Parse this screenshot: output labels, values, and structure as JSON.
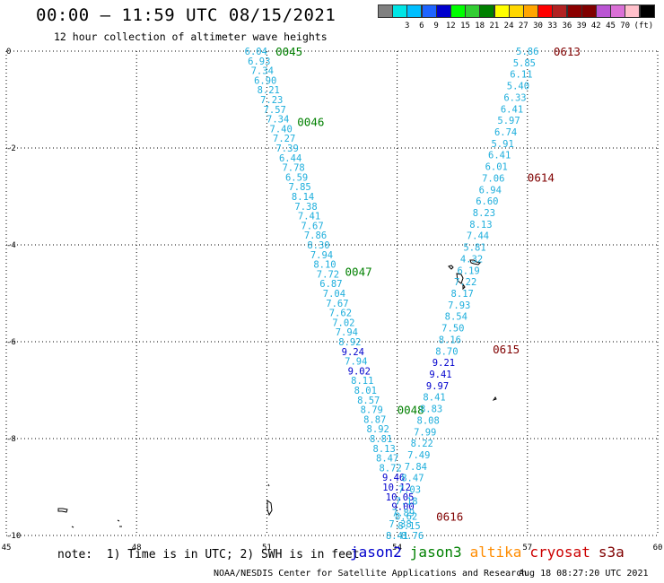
{
  "header": {
    "title": "00:00 – 11:59 UTC 08/15/2021",
    "subtitle": "12 hour collection of altimeter wave heights"
  },
  "colorbar": {
    "unit": "(ft)",
    "colors": [
      "#808080",
      "#00e5e5",
      "#00bfff",
      "#1e64ff",
      "#0000cd",
      "#00ff00",
      "#32cd32",
      "#008000",
      "#ffff00",
      "#ffd700",
      "#ffa500",
      "#ff0000",
      "#b22222",
      "#8b0000",
      "#800000",
      "#ba55d3",
      "#da70d6",
      "#ffc0cb",
      "#000000"
    ],
    "labels": [
      "",
      "3",
      "6",
      "9",
      "12",
      "15",
      "18",
      "21",
      "24",
      "27",
      "30",
      "33",
      "36",
      "39",
      "42",
      "45",
      "70",
      ""
    ]
  },
  "note": "note:  1) Time is in UTC; 2) SWH is in feet",
  "satellites": [
    {
      "name": "jason2",
      "color": "#0000cc"
    },
    {
      "name": "jason3",
      "color": "#008000"
    },
    {
      "name": "altika",
      "color": "#ff8c00"
    },
    {
      "name": "cryosat",
      "color": "#cc0000"
    },
    {
      "name": "s3a",
      "color": "#800000"
    }
  ],
  "footer": {
    "credit": "NOAA/NESDIS Center for Satellite Applications and Research",
    "timestamp": "Aug 18 08:27:20 UTC 2021"
  },
  "chart_data": {
    "type": "scatter",
    "xlabel": "",
    "ylabel": "",
    "xlim": [
      45,
      60
    ],
    "ylim": [
      -10,
      0
    ],
    "x_ticks": [
      "45",
      "48",
      "51",
      "54",
      "57",
      "60"
    ],
    "y_ticks": [
      "0",
      "-2",
      "-4",
      "-6",
      "-8",
      "-10"
    ],
    "grid": true,
    "tracks": [
      {
        "satellite": "jason3",
        "label_color": "#008000",
        "time_labels": [
          {
            "text": "0045",
            "x": 51.2,
            "y": 0
          },
          {
            "text": "0046",
            "x": 51.7,
            "y": -1.45
          },
          {
            "text": "0047",
            "x": 52.8,
            "y": -4.55
          },
          {
            "text": "0048",
            "x": 54.0,
            "y": -7.4
          }
        ],
        "start": [
          50.75,
          0.0
        ],
        "end": [
          54.35,
          -10.0
        ],
        "values": [
          "6.04",
          "6.93",
          "7.34",
          "6.90",
          "8.21",
          "7.23",
          "7.57",
          "7.34",
          "7.40",
          "7.27",
          "7.39",
          "6.44",
          "7.78",
          "6.59",
          "7.85",
          "8.14",
          "7.38",
          "7.41",
          "7.67",
          "7.86",
          "8.30",
          "7.94",
          "8.10",
          "7.72",
          "6.87",
          "7.04",
          "7.67",
          "7.62",
          "7.02",
          "7.94",
          "8.92",
          "9.24",
          "7.94",
          "9.02",
          "8.11",
          "8.01",
          "8.57",
          "8.79",
          "8.87",
          "8.92",
          "8.81",
          "8.13",
          "8.47",
          "8.72",
          "9.46",
          "10.12",
          "10.05",
          "9.00",
          "8.62",
          "8.15",
          "8.76"
        ]
      },
      {
        "satellite": "s3a",
        "label_color": "#800000",
        "time_labels": [
          {
            "text": "0613",
            "x": 57.6,
            "y": 0
          },
          {
            "text": "0614",
            "x": 57.0,
            "y": -2.6
          },
          {
            "text": "0615",
            "x": 56.2,
            "y": -6.15
          },
          {
            "text": "0616",
            "x": 54.9,
            "y": -9.6
          }
        ],
        "start": [
          57.0,
          0.0
        ],
        "end": [
          54.0,
          -10.0
        ],
        "values": [
          "5.86",
          "5.85",
          "6.11",
          "5.40",
          "6.33",
          "6.41",
          "5.97",
          "6.74",
          "5.91",
          "6.41",
          "6.01",
          "7.06",
          "6.94",
          "6.60",
          "8.23",
          "8.13",
          "7.44",
          "5.81",
          "4.32",
          "6.19",
          "7.22",
          "8.17",
          "7.93",
          "8.54",
          "7.50",
          "8.16",
          "8.70",
          "9.21",
          "9.41",
          "9.97",
          "8.41",
          "8.83",
          "8.08",
          "7.99",
          "8.22",
          "7.49",
          "7.84",
          "8.47",
          "7.03",
          "7.18",
          "7.89",
          "7.38",
          "8.41"
        ]
      }
    ]
  }
}
